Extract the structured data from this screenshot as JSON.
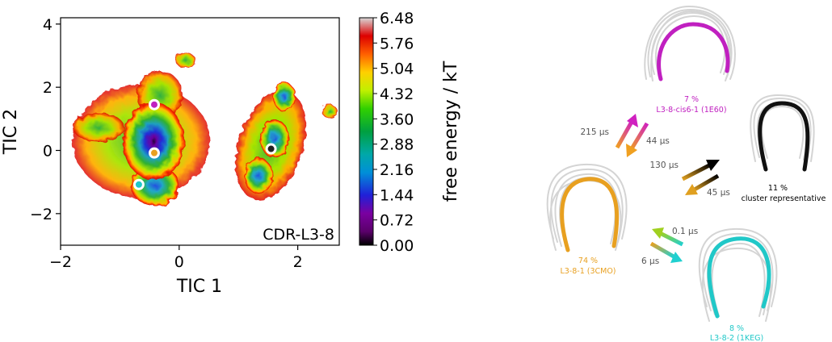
{
  "chart_data": {
    "type": "heatmap",
    "xlabel": "TIC 1",
    "ylabel": "TIC 2",
    "xlim": [
      -2.0,
      2.7
    ],
    "ylim": [
      -3.0,
      4.2
    ],
    "x_ticks": [
      -2,
      0,
      2
    ],
    "x_tick_labels": [
      "−2",
      "0",
      "2"
    ],
    "y_ticks": [
      -2,
      0,
      2,
      4
    ],
    "y_tick_labels": [
      "−2",
      "0",
      "2",
      "4"
    ],
    "annotation": "CDR-L3-8",
    "colorbar": {
      "label": "free energy / kT",
      "min": 0.0,
      "max": 6.48,
      "ticks": [
        "0.00",
        "0.72",
        "1.44",
        "2.16",
        "2.88",
        "3.60",
        "4.32",
        "5.04",
        "5.76",
        "6.48"
      ]
    },
    "markers": [
      {
        "x": -0.42,
        "y": 1.45,
        "color": "#c020c0"
      },
      {
        "x": -0.42,
        "y": -0.08,
        "color": "#e8a020"
      },
      {
        "x": -0.68,
        "y": -1.08,
        "color": "#20c8c8"
      },
      {
        "x": 1.55,
        "y": 0.05,
        "color": "#202020"
      }
    ]
  },
  "diagram": {
    "states": [
      {
        "percent": "7 %",
        "name": "L3-8-cis6-1 (1E60)",
        "color": "#c020c0"
      },
      {
        "percent": "11 %",
        "name": "cluster representative",
        "color": "#000000"
      },
      {
        "percent": "74 %",
        "name": "L3-8-1 (3CMO)",
        "color": "#e8a020"
      },
      {
        "percent": "8 %",
        "name": "L3-8-2 (1KEG)",
        "color": "#20c8c8"
      }
    ],
    "rates": [
      {
        "forward": "215 µs",
        "backward": "44 µs"
      },
      {
        "forward": "130 µs",
        "backward": "45 µs"
      },
      {
        "forward": "0.1 µs",
        "backward": "6 µs"
      }
    ]
  }
}
